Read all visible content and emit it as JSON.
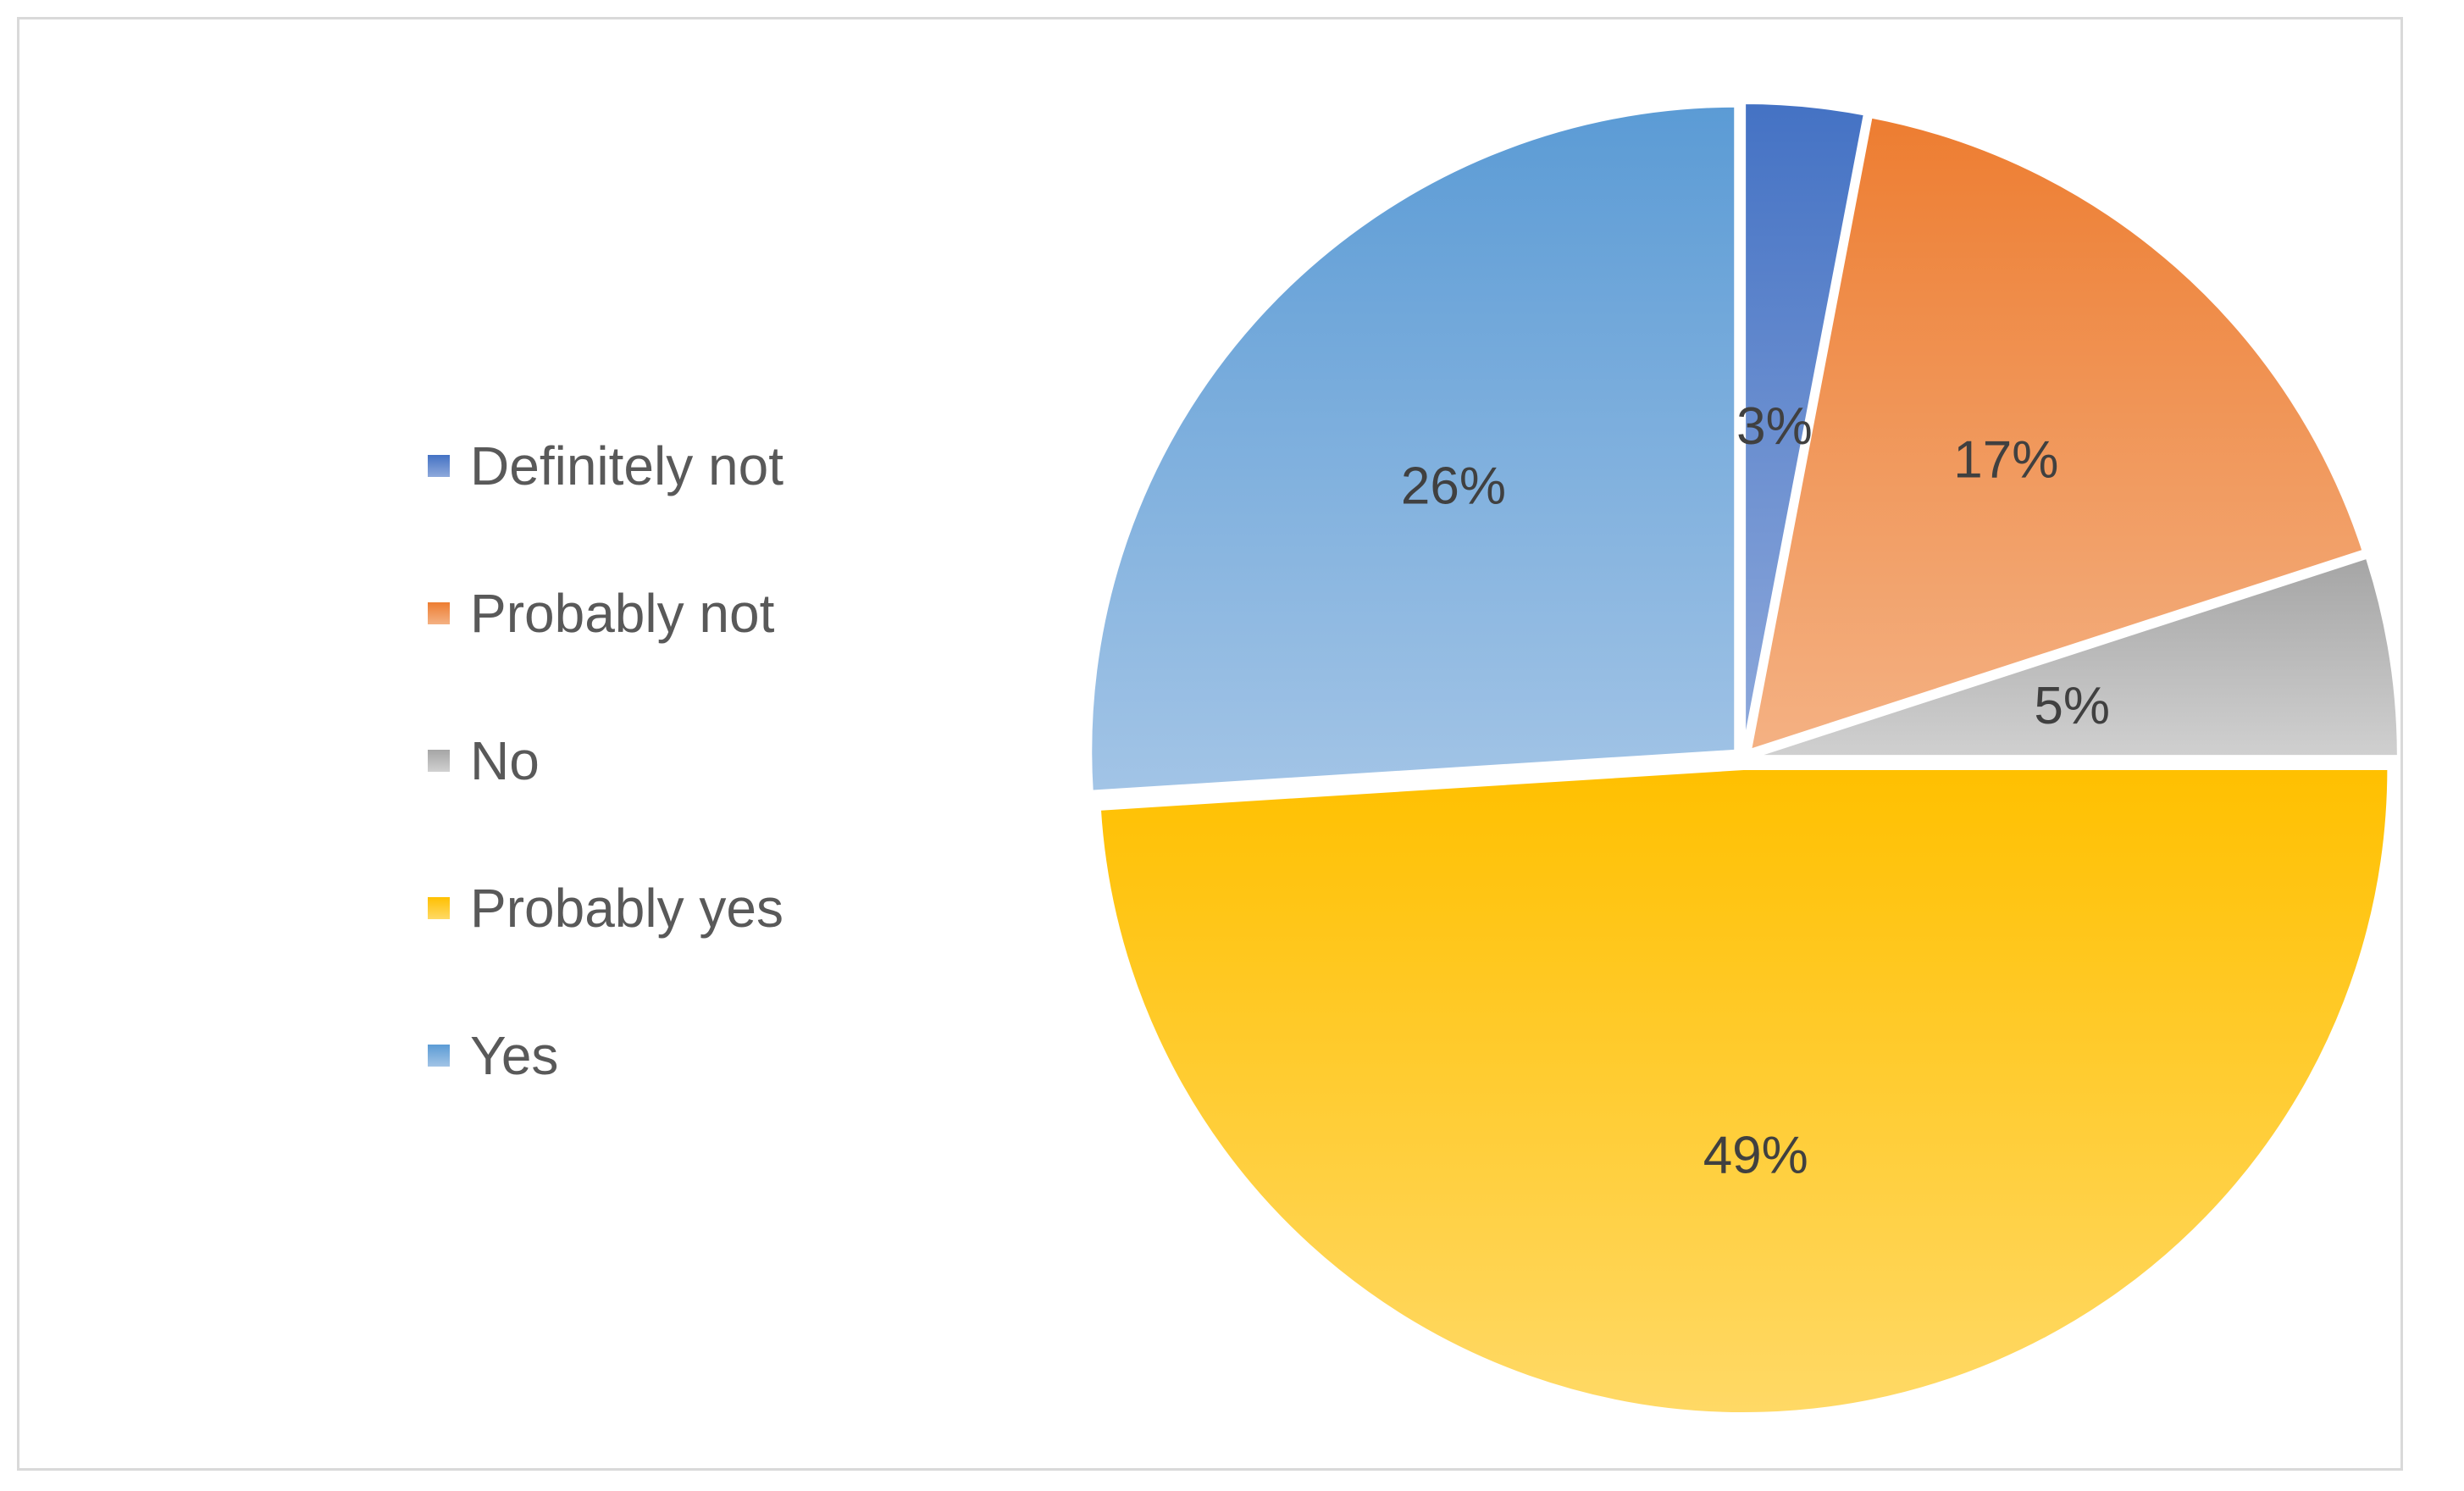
{
  "chart_data": {
    "type": "pie",
    "categories": [
      "Definitely not",
      "Probably not",
      "No",
      "Probably yes",
      "Yes"
    ],
    "values": [
      3,
      17,
      5,
      49,
      26
    ],
    "data_labels": [
      "3%",
      "17%",
      "5%",
      "49%",
      "26%"
    ],
    "colors": {
      "Definitely not": [
        "#4472c4",
        "#8ea9db"
      ],
      "Probably not": [
        "#ed7d31",
        "#f4b183"
      ],
      "No": [
        "#a5a5a5",
        "#d0d0d0"
      ],
      "Probably yes": [
        "#ffc000",
        "#ffd966"
      ],
      "Yes": [
        "#5b9bd5",
        "#a2c4e6"
      ]
    },
    "start_angle_deg": 0,
    "direction": "clockwise",
    "legend_position": "left",
    "title": ""
  }
}
